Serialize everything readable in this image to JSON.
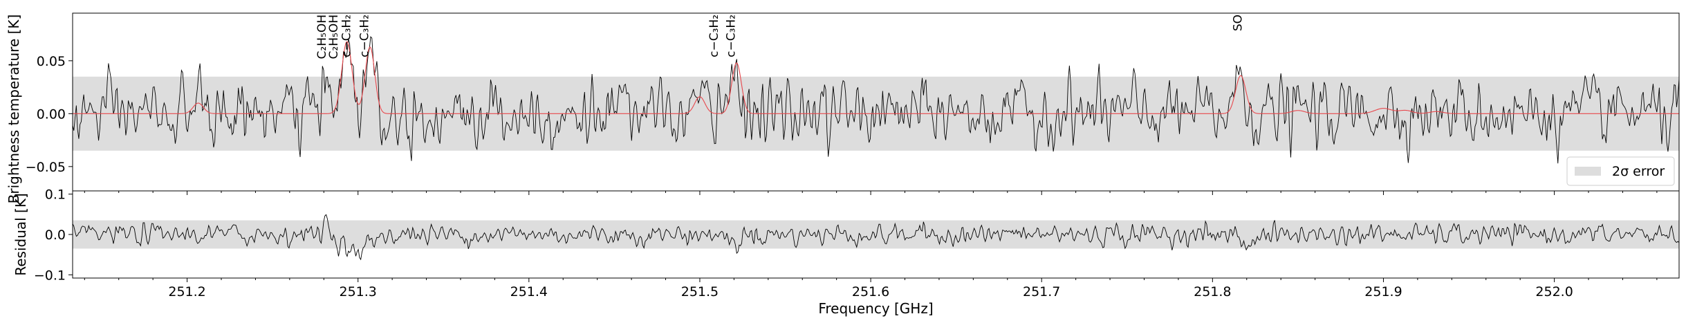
{
  "chart_data": [
    {
      "type": "line",
      "name": "spectrum-panel",
      "ylabel": "Brightness temperature [K]",
      "xlim": [
        251.133,
        252.073
      ],
      "ylim": [
        -0.073,
        0.095
      ],
      "yticks": [
        -0.05,
        0.0,
        0.05
      ],
      "ytick_labels": [
        "−0.05",
        "0.00",
        "0.05"
      ],
      "error_band": [
        -0.035,
        0.035
      ],
      "legend": {
        "placement": "lower-right",
        "entries": [
          {
            "label": "2σ error",
            "color": "#dddddd"
          }
        ]
      },
      "noise_sigma": 0.017,
      "series": [
        {
          "kind": "observed",
          "color": "#000000"
        },
        {
          "kind": "model",
          "color": "#e8474c"
        }
      ],
      "line_features": [
        {
          "x": 251.2065,
          "amp": 0.01,
          "width": 0.003
        },
        {
          "x": 251.281,
          "amp": 0.04,
          "width": 0.0012,
          "observed_only": true
        },
        {
          "x": 251.2935,
          "amp": 0.068,
          "width": 0.003
        },
        {
          "x": 251.307,
          "amp": 0.063,
          "width": 0.0028
        },
        {
          "x": 251.5,
          "amp": 0.016,
          "width": 0.003
        },
        {
          "x": 251.5215,
          "amp": 0.048,
          "width": 0.0028
        },
        {
          "x": 251.8165,
          "amp": 0.036,
          "width": 0.003
        },
        {
          "x": 251.85,
          "amp": 0.003,
          "width": 0.004
        },
        {
          "x": 251.9,
          "amp": 0.005,
          "width": 0.005
        },
        {
          "x": 251.913,
          "amp": 0.003,
          "width": 0.004
        },
        {
          "x": 251.931,
          "amp": 0.002,
          "width": 0.004
        }
      ],
      "line_labels": [
        {
          "x": 251.279,
          "text": "C₂H₅OH"
        },
        {
          "x": 251.286,
          "text": "C₂H₅OH"
        },
        {
          "x": 251.2935,
          "text": "c−C₃H₂"
        },
        {
          "x": 251.304,
          "text": "c−C₃H₂"
        },
        {
          "x": 251.5085,
          "text": "c−C₃H₂"
        },
        {
          "x": 251.5185,
          "text": "c−C₃H₂"
        },
        {
          "x": 251.815,
          "text": "SO"
        }
      ]
    },
    {
      "type": "line",
      "name": "residual-panel",
      "ylabel": "Residual [K]",
      "xlabel": "Frequency [GHz]",
      "xlim": [
        251.133,
        252.073
      ],
      "ylim": [
        -0.108,
        0.108
      ],
      "yticks": [
        -0.1,
        0.0,
        0.1
      ],
      "ytick_labels": [
        "−0.1",
        "0.0",
        "0.1"
      ],
      "xticks": [
        251.2,
        251.3,
        251.4,
        251.5,
        251.6,
        251.7,
        251.8,
        251.9,
        252.0
      ],
      "xtick_labels": [
        "251.2",
        "251.3",
        "251.4",
        "251.5",
        "251.6",
        "251.7",
        "251.8",
        "251.9",
        "252.0"
      ],
      "error_band": [
        -0.035,
        0.035
      ],
      "noise_sigma": 0.014,
      "residual_features": [
        {
          "x": 251.281,
          "amp": 0.04,
          "width": 0.0015
        },
        {
          "x": 251.299,
          "amp": -0.05,
          "width": 0.006
        },
        {
          "x": 251.52,
          "amp": -0.025,
          "width": 0.003
        },
        {
          "x": 251.82,
          "amp": -0.025,
          "width": 0.003
        }
      ],
      "series": [
        {
          "kind": "residual",
          "color": "#000000"
        }
      ]
    }
  ]
}
